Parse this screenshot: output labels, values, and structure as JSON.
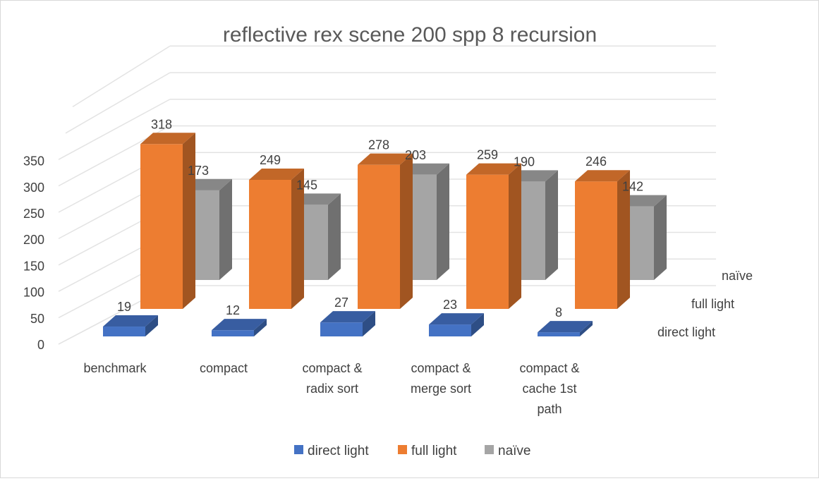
{
  "chart_data": {
    "type": "bar",
    "title": "reflective rex scene 200 spp 8 recursion",
    "categories": [
      [
        "benchmark"
      ],
      [
        "compact"
      ],
      [
        "compact &",
        "radix sort"
      ],
      [
        "compact &",
        "merge sort"
      ],
      [
        "compact &",
        "cache 1st",
        "path"
      ]
    ],
    "series": [
      {
        "name": "direct light",
        "values": [
          19,
          12,
          27,
          23,
          8
        ],
        "color": "#4472C4"
      },
      {
        "name": "full light",
        "values": [
          318,
          249,
          278,
          259,
          246
        ],
        "color": "#ED7D31"
      },
      {
        "name": "naïve",
        "values": [
          173,
          145,
          203,
          190,
          142
        ],
        "color": "#A5A5A5"
      }
    ],
    "yticks": [
      0,
      50,
      100,
      150,
      200,
      250,
      300,
      350
    ],
    "ylim": [
      0,
      350
    ],
    "grid": true,
    "legend": "bottom",
    "style": "3d-clustered-column"
  }
}
